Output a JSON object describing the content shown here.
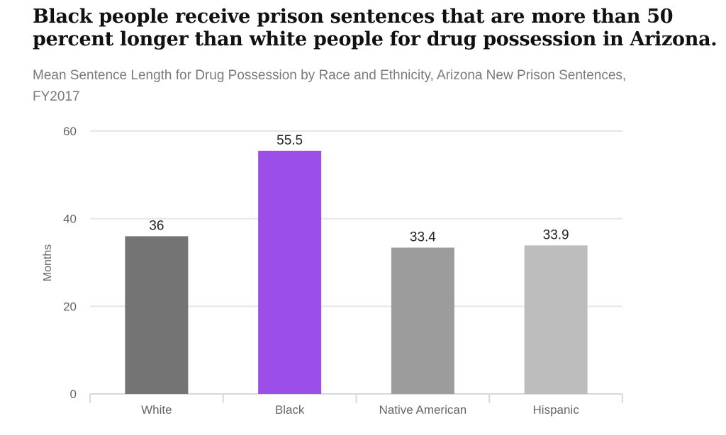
{
  "chart_data": {
    "type": "bar",
    "title": "Black people receive prison sentences that are more than 50 percent longer than white people for drug possession in Arizona.",
    "subtitle": "Mean Sentence Length for Drug Possession by Race and Ethnicity, Arizona New Prison Sentences, FY2017",
    "xlabel": "",
    "ylabel": "Months",
    "ylim": [
      0,
      60
    ],
    "yticks": [
      0,
      20,
      40,
      60
    ],
    "grid": true,
    "categories": [
      "White",
      "Black",
      "Native American",
      "Hispanic"
    ],
    "values": [
      36,
      55.5,
      33.4,
      33.9
    ],
    "data_labels": [
      "36",
      "55.5",
      "33.4",
      "33.9"
    ],
    "colors": [
      "#747474",
      "#9b4fe8",
      "#9c9c9c",
      "#bdbdbd"
    ]
  }
}
